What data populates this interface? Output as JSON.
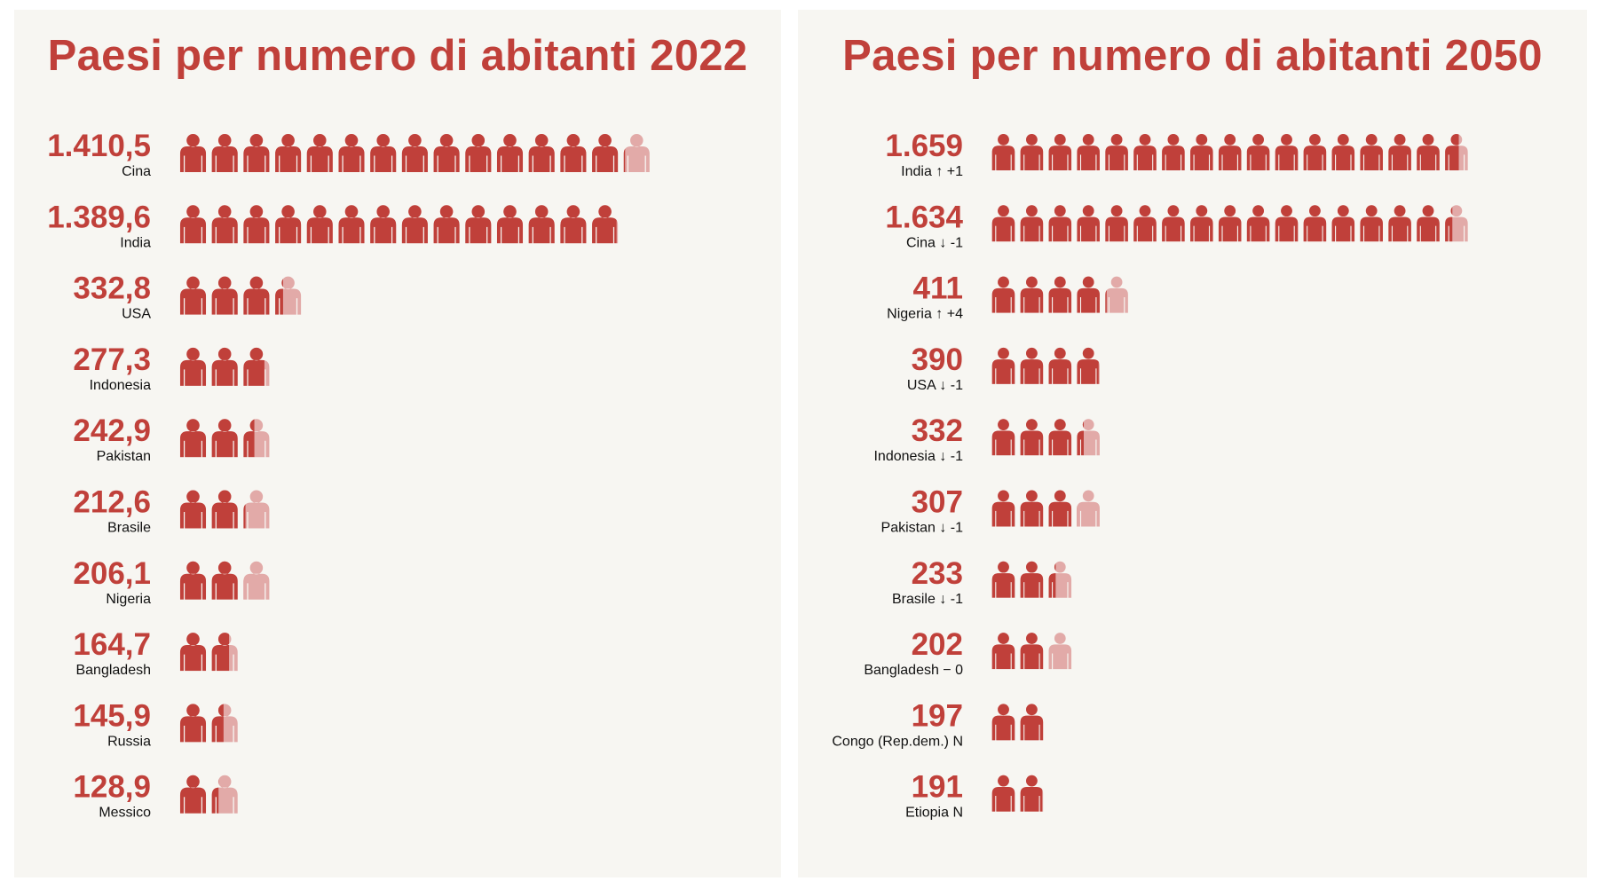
{
  "colors": {
    "accent": "#c0403a",
    "accent_light": "#e2aaa8",
    "panel_bg": "#f7f6f2",
    "label": "#111111"
  },
  "icon": "person-icon",
  "chart_data": [
    {
      "type": "pictogram",
      "title": "Paesi per numero di abitanti 2022",
      "unit_per_icon": 100,
      "rows": [
        {
          "value_label": "1.410,5",
          "name": "Cina",
          "value": 1410.5
        },
        {
          "value_label": "1.389,6",
          "name": "India",
          "value": 1389.6
        },
        {
          "value_label": "332,8",
          "name": "USA",
          "value": 332.8
        },
        {
          "value_label": "277,3",
          "name": "Indonesia",
          "value": 277.3
        },
        {
          "value_label": "242,9",
          "name": "Pakistan",
          "value": 242.9
        },
        {
          "value_label": "212,6",
          "name": "Brasile",
          "value": 212.6
        },
        {
          "value_label": "206,1",
          "name": "Nigeria",
          "value": 206.1
        },
        {
          "value_label": "164,7",
          "name": "Bangladesh",
          "value": 164.7
        },
        {
          "value_label": "145,9",
          "name": "Russia",
          "value": 145.9
        },
        {
          "value_label": "128,9",
          "name": "Messico",
          "value": 128.9
        }
      ]
    },
    {
      "type": "pictogram",
      "title": "Paesi per numero di abitanti 2050",
      "unit_per_icon": 100,
      "rows": [
        {
          "value_label": "1.659",
          "name": "India ↑ +1",
          "value": 1659
        },
        {
          "value_label": "1.634",
          "name": "Cina ↓ -1",
          "value": 1634
        },
        {
          "value_label": "411",
          "name": "Nigeria ↑ +4",
          "value": 411
        },
        {
          "value_label": "390",
          "name": "USA ↓ -1",
          "value": 390
        },
        {
          "value_label": "332",
          "name": "Indonesia ↓ -1",
          "value": 332
        },
        {
          "value_label": "307",
          "name": "Pakistan ↓ -1",
          "value": 307
        },
        {
          "value_label": "233",
          "name": "Brasile ↓ -1",
          "value": 233
        },
        {
          "value_label": "202",
          "name": "Bangladesh − 0",
          "value": 202
        },
        {
          "value_label": "197",
          "name": "Congo (Rep.dem.) N",
          "value": 197
        },
        {
          "value_label": "191",
          "name": "Etiopia N",
          "value": 191
        }
      ]
    }
  ]
}
